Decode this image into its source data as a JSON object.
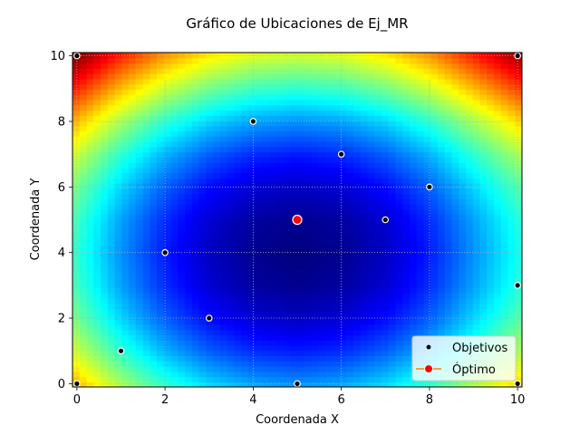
{
  "chart_data": {
    "type": "scatter",
    "title": "Gráfico de Ubicaciones de Ej_MR",
    "xlabel": "Coordenada X",
    "ylabel": "Coordenada Y",
    "xlim": [
      0,
      10
    ],
    "ylim": [
      0,
      10
    ],
    "xticks": [
      "0",
      "2",
      "4",
      "6",
      "8",
      "10"
    ],
    "yticks": [
      "0",
      "2",
      "4",
      "6",
      "8",
      "10"
    ],
    "grid": true,
    "legend_position": "bottom-right",
    "background": {
      "type": "heatmap",
      "description_values": "sum of Manhattan distances to objectives",
      "colormap": "jet",
      "colors": [
        "#00007f",
        "#0000ff",
        "#007fff",
        "#00ffff",
        "#7fff7f",
        "#ffff00",
        "#ff7f00",
        "#ff0000",
        "#7f0000"
      ]
    },
    "series": [
      {
        "name": "Objetivos",
        "marker": "dot",
        "color": "#000000",
        "x": [
          0,
          0,
          1,
          2,
          3,
          4,
          5,
          6,
          7,
          8,
          10,
          10,
          10
        ],
        "y": [
          0,
          10,
          1,
          4,
          2,
          8,
          0,
          7,
          5,
          6,
          0,
          3,
          10
        ]
      },
      {
        "name": "Óptimo",
        "marker": "circle",
        "color": "#ff0000",
        "line_color": "#ff7f0e",
        "x": [
          5
        ],
        "y": [
          5
        ]
      }
    ]
  }
}
